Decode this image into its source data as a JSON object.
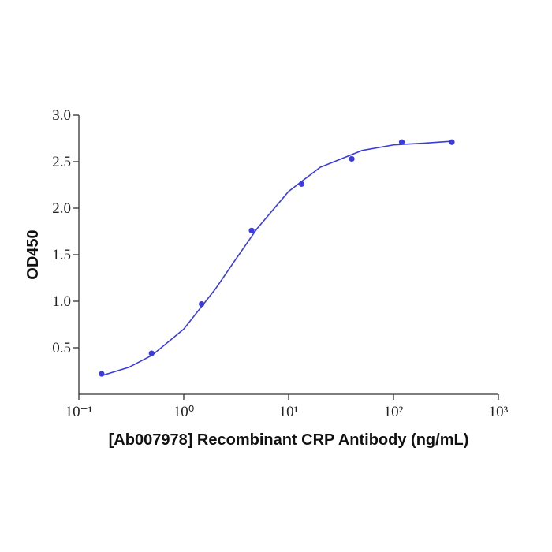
{
  "chart_data": {
    "type": "scatter",
    "x_label": "[Ab007978] Recombinant CRP Antibody (ng/mL)",
    "y_label": "OD450",
    "xscale": "log",
    "xlim": [
      0.1,
      1000
    ],
    "xticks": [
      {
        "value": 0.1,
        "label": "10⁻¹"
      },
      {
        "value": 1,
        "label": "10⁰"
      },
      {
        "value": 10,
        "label": "10¹"
      },
      {
        "value": 100,
        "label": "10²"
      },
      {
        "value": 1000,
        "label": "10³"
      }
    ],
    "ylim": [
      0,
      3.0
    ],
    "yticks": [
      0.5,
      {
        "value": 1.0,
        "label": "1.0"
      },
      1.5,
      {
        "value": 2.0,
        "label": "2.0"
      },
      2.5,
      {
        "value": 3.0,
        "label": "3.0"
      }
    ],
    "grid": false,
    "series": [
      {
        "type": "scatter",
        "color": "#3b3be0",
        "x": [
          0.165,
          0.494,
          1.48,
          4.44,
          13.3,
          40,
          120,
          360
        ],
        "values": [
          0.22,
          0.44,
          0.97,
          1.76,
          2.26,
          2.53,
          2.71,
          2.71
        ]
      },
      {
        "type": "line",
        "color": "#3b3be0",
        "x": [
          0.165,
          0.3,
          0.5,
          1,
          2,
          3,
          5,
          10,
          20,
          50,
          100,
          200,
          360
        ],
        "values": [
          0.2,
          0.29,
          0.42,
          0.7,
          1.13,
          1.42,
          1.78,
          2.18,
          2.44,
          2.62,
          2.68,
          2.7,
          2.72
        ]
      }
    ]
  }
}
